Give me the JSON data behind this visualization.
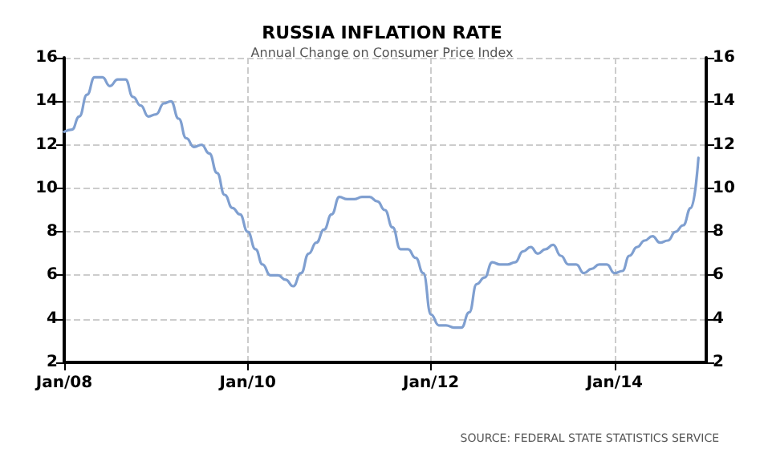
{
  "chart_data": {
    "type": "line",
    "title": "RUSSIA INFLATION RATE",
    "subtitle": "Annual Change on Consumer Price Index",
    "annotations": [
      "SOURCE: FEDERAL STATE STATISTICS SERVICE"
    ],
    "x": [
      "2008-01",
      "2008-02",
      "2008-03",
      "2008-04",
      "2008-05",
      "2008-06",
      "2008-07",
      "2008-08",
      "2008-09",
      "2008-10",
      "2008-11",
      "2008-12",
      "2009-01",
      "2009-02",
      "2009-03",
      "2009-04",
      "2009-05",
      "2009-06",
      "2009-07",
      "2009-08",
      "2009-09",
      "2009-10",
      "2009-11",
      "2009-12",
      "2010-01",
      "2010-02",
      "2010-03",
      "2010-04",
      "2010-05",
      "2010-06",
      "2010-07",
      "2010-08",
      "2010-09",
      "2010-10",
      "2010-11",
      "2010-12",
      "2011-01",
      "2011-02",
      "2011-03",
      "2011-04",
      "2011-05",
      "2011-06",
      "2011-07",
      "2011-08",
      "2011-09",
      "2011-10",
      "2011-11",
      "2011-12",
      "2012-01",
      "2012-02",
      "2012-03",
      "2012-04",
      "2012-05",
      "2012-06",
      "2012-07",
      "2012-08",
      "2012-09",
      "2012-10",
      "2012-11",
      "2012-12",
      "2013-01",
      "2013-02",
      "2013-03",
      "2013-04",
      "2013-05",
      "2013-06",
      "2013-07",
      "2013-08",
      "2013-09",
      "2013-10",
      "2013-11",
      "2013-12",
      "2014-01",
      "2014-02",
      "2014-03",
      "2014-04",
      "2014-05",
      "2014-06",
      "2014-07",
      "2014-08",
      "2014-09",
      "2014-10",
      "2014-11",
      "2014-12"
    ],
    "series": [
      {
        "color": "#7f9fd0",
        "values": [
          12.6,
          12.7,
          13.3,
          14.3,
          15.1,
          15.1,
          14.7,
          15.0,
          15.0,
          14.2,
          13.8,
          13.3,
          13.4,
          13.9,
          14.0,
          13.2,
          12.3,
          11.9,
          12.0,
          11.6,
          10.7,
          9.7,
          9.1,
          8.8,
          8.0,
          7.2,
          6.5,
          6.0,
          6.0,
          5.8,
          5.5,
          6.1,
          7.0,
          7.5,
          8.1,
          8.8,
          9.6,
          9.5,
          9.5,
          9.6,
          9.6,
          9.4,
          9.0,
          8.2,
          7.2,
          7.2,
          6.8,
          6.1,
          4.2,
          3.7,
          3.7,
          3.6,
          3.6,
          4.3,
          5.6,
          5.9,
          6.6,
          6.5,
          6.5,
          6.6,
          7.1,
          7.3,
          7.0,
          7.2,
          7.4,
          6.9,
          6.5,
          6.5,
          6.1,
          6.3,
          6.5,
          6.5,
          6.1,
          6.2,
          6.9,
          7.3,
          7.6,
          7.8,
          7.5,
          7.6,
          8.0,
          8.3,
          9.1,
          11.4
        ]
      }
    ],
    "xlim": [
      "2008-01",
      "2015-01"
    ],
    "xticks": [
      {
        "value": "2008-01",
        "label": "Jan/08"
      },
      {
        "value": "2010-01",
        "label": "Jan/10"
      },
      {
        "value": "2012-01",
        "label": "Jan/12"
      },
      {
        "value": "2014-01",
        "label": "Jan/14"
      }
    ],
    "ylim": [
      2,
      16
    ],
    "yticks": [
      2,
      4,
      6,
      8,
      10,
      12,
      14,
      16
    ],
    "y2lim": [
      2,
      16
    ],
    "y2ticks": [
      2,
      4,
      6,
      8,
      10,
      12,
      14,
      16
    ],
    "grid": true,
    "marker": "none",
    "line_style": "solid"
  }
}
